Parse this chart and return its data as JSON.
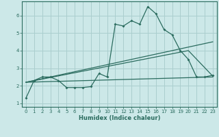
{
  "title": "",
  "xlabel": "Humidex (Indice chaleur)",
  "bg_color": "#cce8e8",
  "line_color": "#2a6b5e",
  "grid_color": "#aacece",
  "xlim": [
    -0.5,
    23.5
  ],
  "ylim": [
    0.8,
    6.8
  ],
  "yticks": [
    1,
    2,
    3,
    4,
    5,
    6
  ],
  "xticks": [
    0,
    1,
    2,
    3,
    4,
    5,
    6,
    7,
    8,
    9,
    10,
    11,
    12,
    13,
    14,
    15,
    16,
    17,
    18,
    19,
    20,
    21,
    22,
    23
  ],
  "line1_x": [
    0,
    1,
    2,
    3,
    4,
    5,
    6,
    7,
    8,
    9,
    10,
    11,
    12,
    13,
    14,
    15,
    16,
    17,
    18,
    19,
    20,
    21,
    22,
    23
  ],
  "line1_y": [
    1.3,
    2.3,
    2.5,
    2.5,
    2.3,
    1.9,
    1.9,
    1.9,
    1.95,
    2.7,
    2.5,
    5.5,
    5.4,
    5.7,
    5.5,
    6.5,
    6.1,
    5.2,
    4.9,
    4.0,
    3.5,
    2.5,
    2.5,
    2.6
  ],
  "line2_x": [
    0,
    23
  ],
  "line2_y": [
    2.2,
    4.5
  ],
  "line3_x": [
    0,
    20,
    23
  ],
  "line3_y": [
    2.2,
    4.0,
    2.55
  ],
  "line4_x": [
    0,
    23
  ],
  "line4_y": [
    2.2,
    2.5
  ]
}
